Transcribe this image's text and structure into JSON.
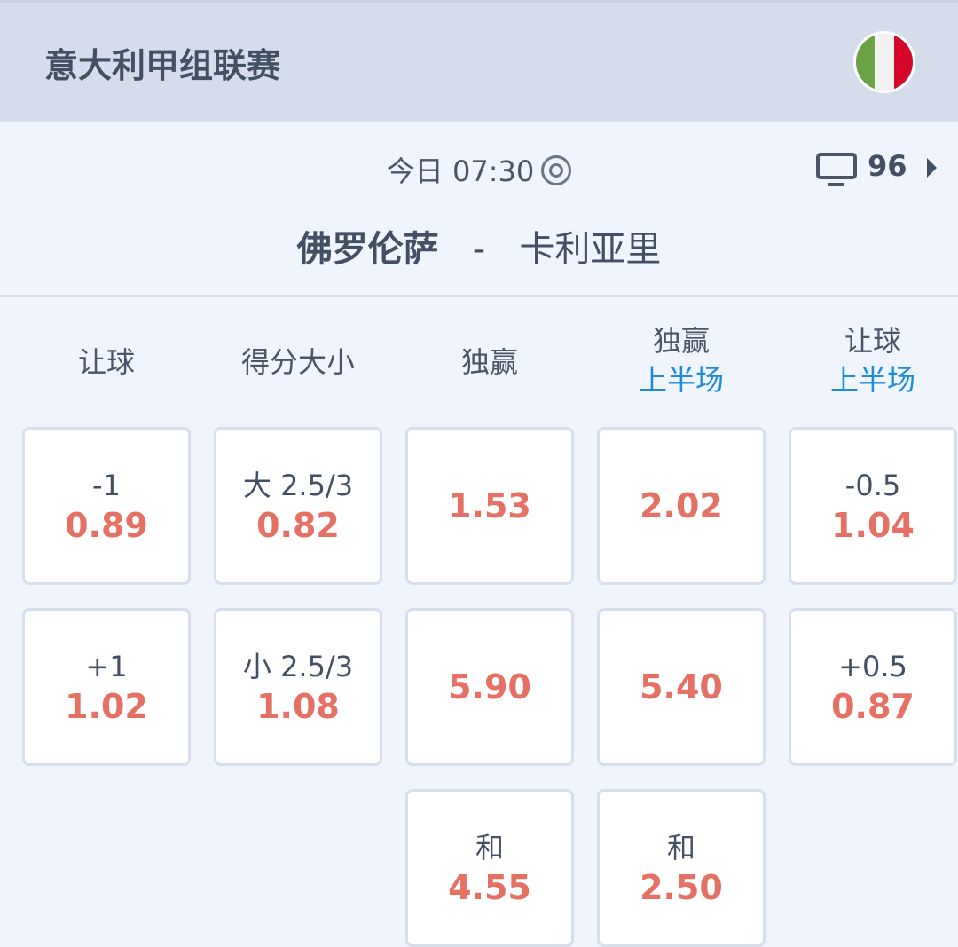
{
  "header": {
    "league": "意大利甲组联赛",
    "flag_colors": [
      "#6ba246",
      "#f1f1f1",
      "#d7072a"
    ]
  },
  "match": {
    "time": "今日 07:30",
    "live_icon": "target-icon",
    "tv_icon": "tv-icon",
    "market_count": "96",
    "home": "佛罗伦萨",
    "separator": "-",
    "away": "卡利亚里"
  },
  "columns": [
    {
      "title": "让球",
      "sub": ""
    },
    {
      "title": "得分大小",
      "sub": ""
    },
    {
      "title": "独赢",
      "sub": ""
    },
    {
      "title": "独赢",
      "sub": "上半场"
    },
    {
      "title": "让球",
      "sub": "上半场"
    }
  ],
  "cells": [
    [
      {
        "label": "-1",
        "odds": "0.89"
      },
      {
        "label": "+1",
        "odds": "1.02"
      }
    ],
    [
      {
        "label": "大 2.5/3",
        "odds": "0.82"
      },
      {
        "label": "小 2.5/3",
        "odds": "1.08"
      }
    ],
    [
      {
        "label": "",
        "odds": "1.53"
      },
      {
        "label": "",
        "odds": "5.90"
      },
      {
        "label": "和",
        "odds": "4.55"
      }
    ],
    [
      {
        "label": "",
        "odds": "2.02"
      },
      {
        "label": "",
        "odds": "5.40"
      },
      {
        "label": "和",
        "odds": "2.50"
      }
    ],
    [
      {
        "label": "-0.5",
        "odds": "1.04"
      },
      {
        "label": "+0.5",
        "odds": "0.87"
      }
    ]
  ],
  "colors": {
    "odds": "#e57064",
    "accent": "#1f8bdc",
    "header_bg": "#d5ddeb",
    "page_bg": "#eff4fd"
  }
}
